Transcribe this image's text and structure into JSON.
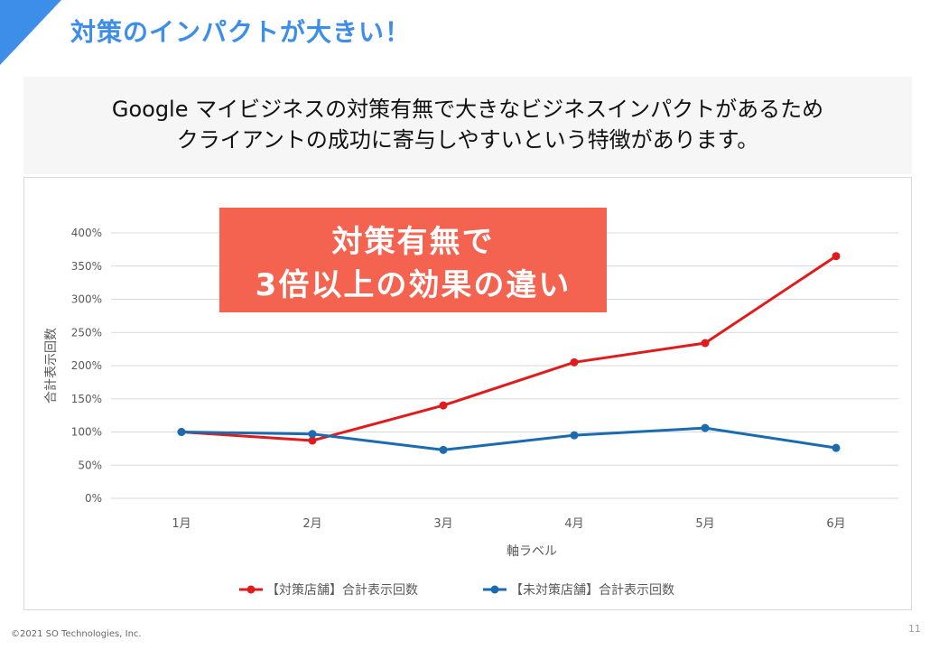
{
  "colors": {
    "accent_blue": "#3d8ee8",
    "callout_red": "#f46350",
    "series_red": "#e01b1b",
    "series_blue": "#1a6bb0"
  },
  "header": {
    "title": "対策のインパクトが大きい！"
  },
  "summary": {
    "line1": "Google マイビジネスの対策有無で大きなビジネスインパクトがあるため",
    "line2": "クライアントの成功に寄与しやすいという特徴があります。"
  },
  "callout": {
    "line1": "対策有無で",
    "line2": "3倍以上の効果の違い"
  },
  "chart_data": {
    "type": "line",
    "categories": [
      "1月",
      "2月",
      "3月",
      "4月",
      "5月",
      "6月"
    ],
    "series": [
      {
        "name": "【対策店舗】合計表示回数",
        "values": [
          100,
          87,
          140,
          205,
          234,
          365
        ],
        "color": "#e01b1b"
      },
      {
        "name": "【未対策店舗】合計表示回数",
        "values": [
          100,
          97,
          73,
          95,
          106,
          76
        ],
        "color": "#1a6bb0"
      }
    ],
    "yticks": [
      "0%",
      "50%",
      "100%",
      "150%",
      "200%",
      "250%",
      "300%",
      "350%",
      "400%"
    ],
    "ylim": [
      0,
      400
    ],
    "xlabel": "軸ラベル",
    "ylabel": "合計表示回数",
    "grid": true,
    "legend_position": "bottom"
  },
  "footer": {
    "copyright": "©2021 SO Technologies, Inc.",
    "page_number": "11"
  }
}
